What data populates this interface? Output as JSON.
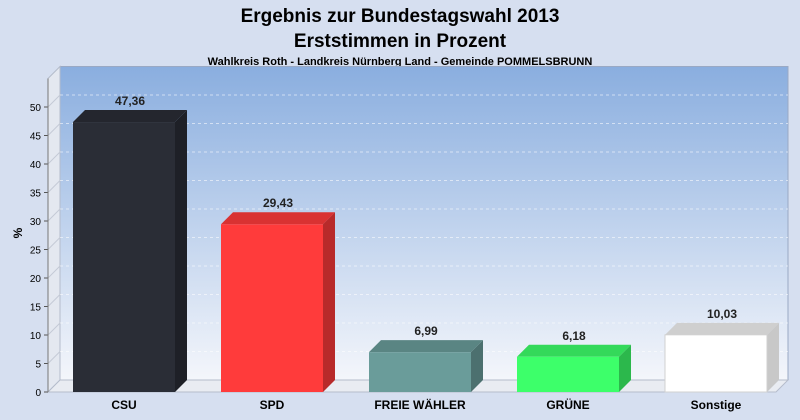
{
  "chart_data": {
    "type": "bar",
    "title": "Ergebnis zur Bundestagswahl 2013",
    "subtitle": "Erststimmen in Prozent",
    "caption": "Wahlkreis Roth - Landkreis Nürnberg Land - Gemeinde POMMELSBRUNN",
    "ylabel": "%",
    "xlabel": "",
    "ylim": [
      0,
      55
    ],
    "yticks": [
      0,
      5,
      10,
      15,
      20,
      25,
      30,
      35,
      40,
      45,
      50
    ],
    "grid": true,
    "categories": [
      "CSU",
      "SPD",
      "FREIE WÄHLER",
      "GRÜNE",
      "Sonstige"
    ],
    "values": [
      47.36,
      29.43,
      6.99,
      6.18,
      10.03
    ],
    "value_labels": [
      "47,36",
      "29,43",
      "6,99",
      "6,18",
      "10,03"
    ],
    "colors": [
      "#2a2d36",
      "#ff3b3b",
      "#6a9c9a",
      "#3dff6a",
      "#ffffff"
    ]
  }
}
